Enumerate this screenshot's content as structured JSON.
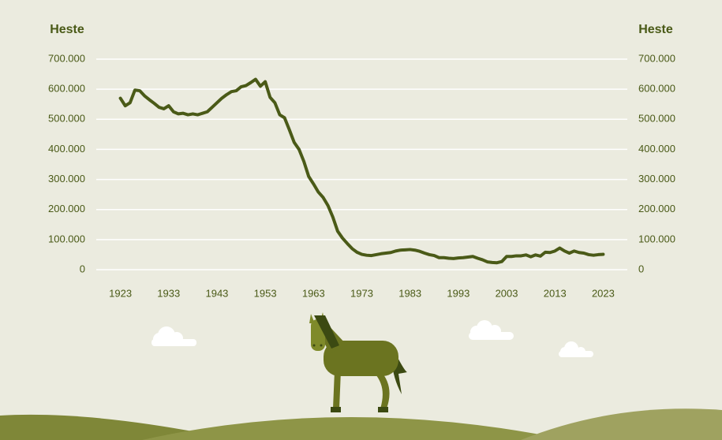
{
  "chart_data": {
    "type": "line",
    "y_label": "Heste",
    "y2_label": "Heste",
    "color": "#4a5a17",
    "grid": true,
    "x": [
      1923,
      1924,
      1925,
      1926,
      1927,
      1928,
      1929,
      1930,
      1931,
      1932,
      1933,
      1934,
      1935,
      1936,
      1937,
      1938,
      1939,
      1940,
      1941,
      1942,
      1943,
      1944,
      1945,
      1946,
      1947,
      1948,
      1949,
      1950,
      1951,
      1952,
      1953,
      1954,
      1955,
      1956,
      1957,
      1958,
      1959,
      1960,
      1961,
      1962,
      1963,
      1964,
      1965,
      1966,
      1967,
      1968,
      1969,
      1970,
      1971,
      1972,
      1973,
      1974,
      1975,
      1976,
      1977,
      1978,
      1979,
      1980,
      1981,
      1982,
      1983,
      1984,
      1985,
      1986,
      1987,
      1988,
      1989,
      1990,
      1991,
      1992,
      1993,
      1994,
      1995,
      1996,
      1997,
      1998,
      1999,
      2000,
      2001,
      2002,
      2003,
      2004,
      2005,
      2006,
      2007,
      2008,
      2009,
      2010,
      2011,
      2012,
      2013,
      2014,
      2015,
      2016,
      2017,
      2018,
      2019,
      2020,
      2021,
      2022,
      2023
    ],
    "values": [
      570000,
      545000,
      555000,
      597000,
      595000,
      578000,
      565000,
      553000,
      540000,
      535000,
      545000,
      525000,
      518000,
      520000,
      515000,
      518000,
      515000,
      520000,
      525000,
      540000,
      555000,
      570000,
      582000,
      592000,
      595000,
      608000,
      612000,
      622000,
      633000,
      610000,
      625000,
      573000,
      555000,
      515000,
      505000,
      465000,
      423000,
      400000,
      360000,
      310000,
      285000,
      258000,
      240000,
      213000,
      175000,
      128000,
      105000,
      87000,
      70000,
      58000,
      51000,
      48000,
      47000,
      50000,
      53000,
      55000,
      57000,
      62000,
      65000,
      66000,
      67000,
      65000,
      61000,
      55000,
      50000,
      47000,
      40000,
      40000,
      38000,
      37000,
      39000,
      40000,
      42000,
      44000,
      38000,
      33000,
      26000,
      24000,
      23000,
      27000,
      44000,
      44000,
      46000,
      46000,
      49000,
      43000,
      49000,
      45000,
      58000,
      57000,
      62000,
      72000,
      62000,
      55000,
      62000,
      57000,
      55000,
      50000,
      48000,
      50000,
      51000
    ],
    "xlim": [
      1918,
      2028
    ],
    "xticks": [
      1923,
      1933,
      1943,
      1953,
      1963,
      1973,
      1983,
      1993,
      2003,
      2013,
      2023
    ],
    "ylim": [
      0,
      700000
    ],
    "yticks": [
      0,
      {
        "value": 100000,
        "label": "100.000"
      },
      {
        "value": 200000,
        "label": "200.000"
      },
      {
        "value": 300000,
        "label": "300.000"
      },
      {
        "value": 400000,
        "label": "400.000"
      },
      {
        "value": 500000,
        "label": "500.000"
      },
      {
        "value": 600000,
        "label": "600.000"
      },
      {
        "value": 700000,
        "label": "700.000"
      }
    ],
    "y2lim": [
      0,
      700000
    ],
    "y2ticks": [
      0,
      {
        "value": 100000,
        "label": "100.000"
      },
      {
        "value": 200000,
        "label": "200.000"
      },
      {
        "value": 300000,
        "label": "300.000"
      },
      {
        "value": 400000,
        "label": "400.000"
      },
      {
        "value": 500000,
        "label": "500.000"
      },
      {
        "value": 600000,
        "label": "600.000"
      },
      {
        "value": 700000,
        "label": "700.000"
      }
    ]
  }
}
